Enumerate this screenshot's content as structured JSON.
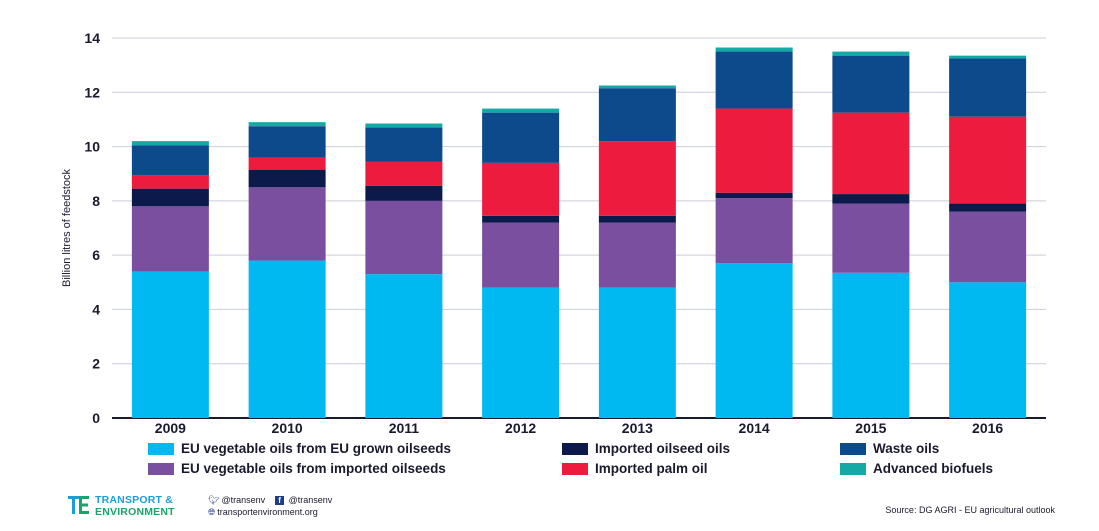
{
  "chart_data": {
    "type": "bar",
    "stacked": true,
    "categories": [
      "2009",
      "2010",
      "2011",
      "2012",
      "2013",
      "2014",
      "2015",
      "2016"
    ],
    "ylabel": "Billion litres of feedstock",
    "ylim": [
      0,
      14
    ],
    "yticks": [
      0,
      2,
      4,
      6,
      8,
      10,
      12,
      14
    ],
    "grid": true,
    "legend_placement": "bottom",
    "series": [
      {
        "name": "EU vegetable oils from EU grown oilseeds",
        "color": "#00b9f1",
        "values": [
          5.4,
          5.8,
          5.3,
          4.8,
          4.8,
          5.7,
          5.35,
          5.0
        ]
      },
      {
        "name": "EU vegetable oils from imported oilseeds",
        "color": "#7b4fa0",
        "values": [
          2.4,
          2.7,
          2.7,
          2.4,
          2.4,
          2.4,
          2.55,
          2.6
        ]
      },
      {
        "name": "Imported oilseed oils",
        "color": "#0c1a4b",
        "values": [
          0.65,
          0.65,
          0.55,
          0.25,
          0.25,
          0.2,
          0.35,
          0.3
        ]
      },
      {
        "name": "Imported palm oil",
        "color": "#ed1b3e",
        "values": [
          0.5,
          0.45,
          0.9,
          1.95,
          2.75,
          3.1,
          3.0,
          3.2
        ]
      },
      {
        "name": "Waste oils",
        "color": "#0d4a8c",
        "values": [
          1.1,
          1.15,
          1.25,
          1.85,
          1.95,
          2.1,
          2.1,
          2.15
        ]
      },
      {
        "name": "Advanced biofuels",
        "color": "#14a9a4",
        "values": [
          0.15,
          0.15,
          0.15,
          0.15,
          0.1,
          0.15,
          0.15,
          0.1
        ]
      }
    ]
  },
  "legend": {
    "items": [
      {
        "label": "EU vegetable oils from EU grown oilseeds",
        "color": "#00b9f1"
      },
      {
        "label": "EU vegetable oils from imported oilseeds",
        "color": "#7b4fa0"
      },
      {
        "label": "Imported oilseed oils",
        "color": "#0c1a4b"
      },
      {
        "label": "Imported palm oil",
        "color": "#ed1b3e"
      },
      {
        "label": "Waste oils",
        "color": "#0d4a8c"
      },
      {
        "label": "Advanced biofuels",
        "color": "#14a9a4"
      }
    ]
  },
  "footer": {
    "logo_line1": "TRANSPORT &",
    "logo_line2": "ENVIRONMENT",
    "logo_colors": {
      "blue": "#1a9fd6",
      "green": "#1aa36b"
    },
    "twitter": "@transenv",
    "facebook": "@transenv",
    "website": "transportenvironment.org",
    "source": "Source: DG AGRI - EU agricultural outlook"
  }
}
